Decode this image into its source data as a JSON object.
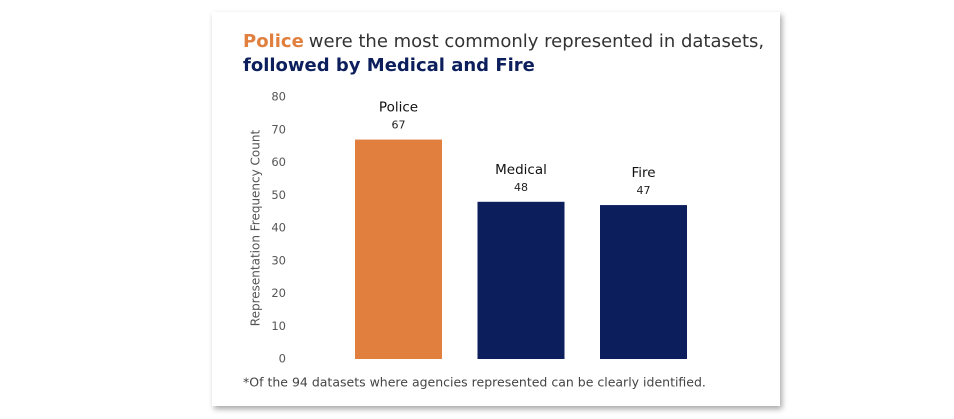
{
  "chart_data": {
    "type": "bar",
    "title": [
      "Police",
      "were the most commonly represented in datasets,",
      "followed by Medical and Fire"
    ],
    "title_colors": [
      "#e07f3e",
      "#333333",
      "#0c1f5c"
    ],
    "y_label": "Representation Frequency Count",
    "categories": [
      "Police",
      "Medical",
      "Fire"
    ],
    "values": [
      67,
      48,
      47
    ],
    "colors": [
      "#e07f3e",
      "#0c1f5c",
      "#0c1f5c"
    ],
    "ylim": [
      0,
      80
    ],
    "yticks": [
      0,
      10,
      20,
      30,
      40,
      50,
      60,
      70,
      80
    ],
    "grid": false,
    "footnote": "*Of the 94 datasets where agencies represented can be clearly identified."
  }
}
